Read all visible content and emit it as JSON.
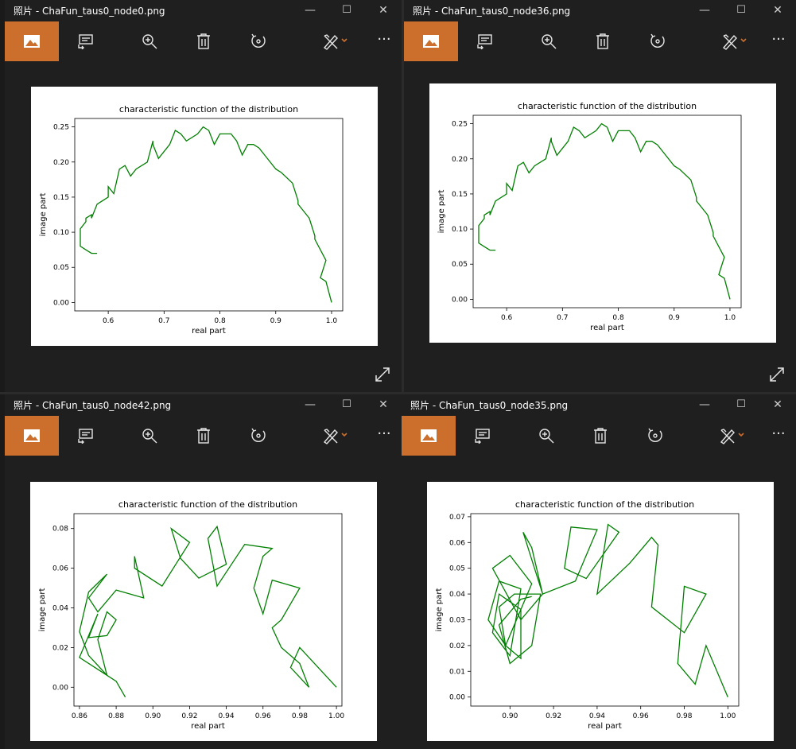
{
  "windows": [
    {
      "id": "w1",
      "title": "照片 - ChaFun_taus0_node0.png",
      "show_expand": true,
      "chart_index": 0
    },
    {
      "id": "w2",
      "title": "照片 - ChaFun_taus0_node36.png",
      "show_expand": true,
      "chart_index": 1
    },
    {
      "id": "w3",
      "title": "照片 - ChaFun_taus0_node42.png",
      "show_expand": false,
      "chart_index": 2
    },
    {
      "id": "w4",
      "title": "照片 - ChaFun_taus0_node35.png",
      "show_expand": false,
      "chart_index": 3
    }
  ],
  "window_controls": {
    "minimize": "—",
    "maximize": "☐",
    "close": "✕"
  },
  "toolbar": {
    "more_label": "···"
  },
  "icons": [
    "image-icon",
    "slideshow-icon",
    "zoom-icon",
    "delete-icon",
    "rotate-icon",
    "edit-icon",
    "more-icon",
    "expand-icon"
  ],
  "colors": {
    "accent": "#cc6e2c",
    "line": "#008000",
    "background": "#1f1f1f"
  },
  "chart_data": [
    {
      "type": "line",
      "title": "characteristic function of the distribution",
      "xlabel": "real part",
      "ylabel": "image part",
      "xlim": [
        0.54,
        1.02
      ],
      "ylim": [
        -0.012,
        0.262
      ],
      "xticks": [
        "0.6",
        "0.7",
        "0.8",
        "0.9",
        "1.0"
      ],
      "xtick_values": [
        0.6,
        0.7,
        0.8,
        0.9,
        1.0
      ],
      "yticks": [
        "0.00",
        "0.05",
        "0.10",
        "0.15",
        "0.20",
        "0.25"
      ],
      "ytick_values": [
        0,
        0.05,
        0.1,
        0.15,
        0.2,
        0.25
      ],
      "x": [
        1.0,
        0.99,
        0.98,
        0.99,
        0.97,
        0.97,
        0.96,
        0.95,
        0.94,
        0.94,
        0.93,
        0.91,
        0.9,
        0.88,
        0.87,
        0.86,
        0.85,
        0.84,
        0.83,
        0.82,
        0.8,
        0.79,
        0.78,
        0.77,
        0.76,
        0.74,
        0.73,
        0.72,
        0.71,
        0.69,
        0.68,
        0.68,
        0.67,
        0.65,
        0.64,
        0.63,
        0.62,
        0.61,
        0.6,
        0.6,
        0.58,
        0.57,
        0.57,
        0.56,
        0.56,
        0.55,
        0.55,
        0.56,
        0.57,
        0.58
      ],
      "y": [
        0.0,
        0.03,
        0.035,
        0.06,
        0.09,
        0.095,
        0.12,
        0.13,
        0.14,
        0.145,
        0.17,
        0.185,
        0.19,
        0.21,
        0.22,
        0.225,
        0.225,
        0.21,
        0.23,
        0.24,
        0.24,
        0.225,
        0.245,
        0.25,
        0.24,
        0.23,
        0.24,
        0.245,
        0.225,
        0.205,
        0.225,
        0.23,
        0.2,
        0.19,
        0.18,
        0.195,
        0.19,
        0.155,
        0.165,
        0.15,
        0.14,
        0.12,
        0.125,
        0.12,
        0.115,
        0.105,
        0.08,
        0.075,
        0.07,
        0.07
      ]
    },
    {
      "type": "line",
      "title": "characteristic function of the distribution",
      "xlabel": "real part",
      "ylabel": "image part",
      "xlim": [
        0.54,
        1.02
      ],
      "ylim": [
        -0.012,
        0.262
      ],
      "xticks": [
        "0.6",
        "0.7",
        "0.8",
        "0.9",
        "1.0"
      ],
      "xtick_values": [
        0.6,
        0.7,
        0.8,
        0.9,
        1.0
      ],
      "yticks": [
        "0.00",
        "0.05",
        "0.10",
        "0.15",
        "0.20",
        "0.25"
      ],
      "ytick_values": [
        0,
        0.05,
        0.1,
        0.15,
        0.2,
        0.25
      ],
      "x": [
        1.0,
        0.99,
        0.98,
        0.99,
        0.97,
        0.97,
        0.96,
        0.95,
        0.94,
        0.94,
        0.93,
        0.91,
        0.9,
        0.88,
        0.87,
        0.86,
        0.85,
        0.84,
        0.83,
        0.82,
        0.8,
        0.79,
        0.78,
        0.77,
        0.76,
        0.74,
        0.73,
        0.72,
        0.71,
        0.69,
        0.68,
        0.68,
        0.67,
        0.65,
        0.64,
        0.63,
        0.62,
        0.61,
        0.6,
        0.6,
        0.58,
        0.57,
        0.57,
        0.56,
        0.56,
        0.55,
        0.55,
        0.56,
        0.57,
        0.58
      ],
      "y": [
        0.0,
        0.03,
        0.035,
        0.06,
        0.09,
        0.095,
        0.12,
        0.13,
        0.14,
        0.145,
        0.17,
        0.185,
        0.19,
        0.21,
        0.22,
        0.225,
        0.225,
        0.21,
        0.23,
        0.24,
        0.24,
        0.225,
        0.245,
        0.25,
        0.24,
        0.23,
        0.24,
        0.245,
        0.225,
        0.205,
        0.225,
        0.23,
        0.2,
        0.19,
        0.18,
        0.195,
        0.19,
        0.155,
        0.165,
        0.15,
        0.14,
        0.12,
        0.125,
        0.12,
        0.115,
        0.105,
        0.08,
        0.075,
        0.07,
        0.07
      ]
    },
    {
      "type": "line",
      "title": "characteristic function of the distribution",
      "xlabel": "real part",
      "ylabel": "image part",
      "xlim": [
        0.857,
        1.003
      ],
      "ylim": [
        -0.0095,
        0.0875
      ],
      "xticks": [
        "0.86",
        "0.88",
        "0.90",
        "0.92",
        "0.94",
        "0.96",
        "0.98",
        "1.00"
      ],
      "xtick_values": [
        0.86,
        0.88,
        0.9,
        0.92,
        0.94,
        0.96,
        0.98,
        1.0
      ],
      "yticks": [
        "0.00",
        "0.02",
        "0.04",
        "0.06",
        "0.08"
      ],
      "ytick_values": [
        0,
        0.02,
        0.04,
        0.06,
        0.08
      ],
      "x": [
        1.0,
        0.98,
        0.975,
        0.985,
        0.98,
        0.97,
        0.965,
        0.97,
        0.98,
        0.965,
        0.96,
        0.955,
        0.96,
        0.965,
        0.95,
        0.935,
        0.93,
        0.935,
        0.94,
        0.925,
        0.915,
        0.91,
        0.92,
        0.905,
        0.89,
        0.89,
        0.895,
        0.88,
        0.87,
        0.865,
        0.875,
        0.865,
        0.86,
        0.865,
        0.875,
        0.87,
        0.875,
        0.88,
        0.875,
        0.865,
        0.87,
        0.86,
        0.88,
        0.885
      ],
      "y": [
        0.0,
        0.02,
        0.01,
        0.0,
        0.012,
        0.02,
        0.03,
        0.034,
        0.05,
        0.054,
        0.037,
        0.05,
        0.066,
        0.07,
        0.072,
        0.051,
        0.075,
        0.081,
        0.062,
        0.055,
        0.065,
        0.08,
        0.073,
        0.051,
        0.06,
        0.066,
        0.045,
        0.049,
        0.038,
        0.045,
        0.057,
        0.048,
        0.028,
        0.016,
        0.006,
        0.024,
        0.038,
        0.034,
        0.026,
        0.025,
        0.037,
        0.015,
        0.003,
        -0.005
      ]
    },
    {
      "type": "line",
      "title": "characteristic function of the distribution",
      "xlabel": "real part",
      "ylabel": "image part",
      "xlim": [
        0.882,
        1.005
      ],
      "ylim": [
        -0.0035,
        0.0712
      ],
      "xticks": [
        "0.90",
        "0.92",
        "0.94",
        "0.96",
        "0.98",
        "1.00"
      ],
      "xtick_values": [
        0.9,
        0.92,
        0.94,
        0.96,
        0.98,
        1.0
      ],
      "yticks": [
        "0.00",
        "0.01",
        "0.02",
        "0.03",
        "0.04",
        "0.05",
        "0.06",
        "0.07"
      ],
      "ytick_values": [
        0,
        0.01,
        0.02,
        0.03,
        0.04,
        0.05,
        0.06,
        0.07
      ],
      "x": [
        1.0,
        0.99,
        0.985,
        0.977,
        0.98,
        0.99,
        0.98,
        0.965,
        0.968,
        0.965,
        0.955,
        0.94,
        0.945,
        0.95,
        0.935,
        0.925,
        0.928,
        0.94,
        0.93,
        0.915,
        0.91,
        0.906,
        0.915,
        0.905,
        0.892,
        0.9,
        0.91,
        0.898,
        0.89,
        0.895,
        0.905,
        0.9,
        0.892,
        0.895,
        0.905,
        0.905,
        0.898,
        0.895,
        0.902,
        0.914,
        0.91,
        0.9,
        0.895,
        0.905,
        0.91
      ],
      "y": [
        0.0,
        0.02,
        0.005,
        0.013,
        0.043,
        0.04,
        0.025,
        0.035,
        0.059,
        0.062,
        0.052,
        0.04,
        0.067,
        0.064,
        0.046,
        0.05,
        0.066,
        0.065,
        0.045,
        0.04,
        0.058,
        0.064,
        0.04,
        0.03,
        0.05,
        0.055,
        0.044,
        0.02,
        0.03,
        0.045,
        0.042,
        0.016,
        0.025,
        0.04,
        0.034,
        0.015,
        0.02,
        0.035,
        0.04,
        0.04,
        0.02,
        0.013,
        0.028,
        0.038,
        0.039
      ]
    }
  ]
}
